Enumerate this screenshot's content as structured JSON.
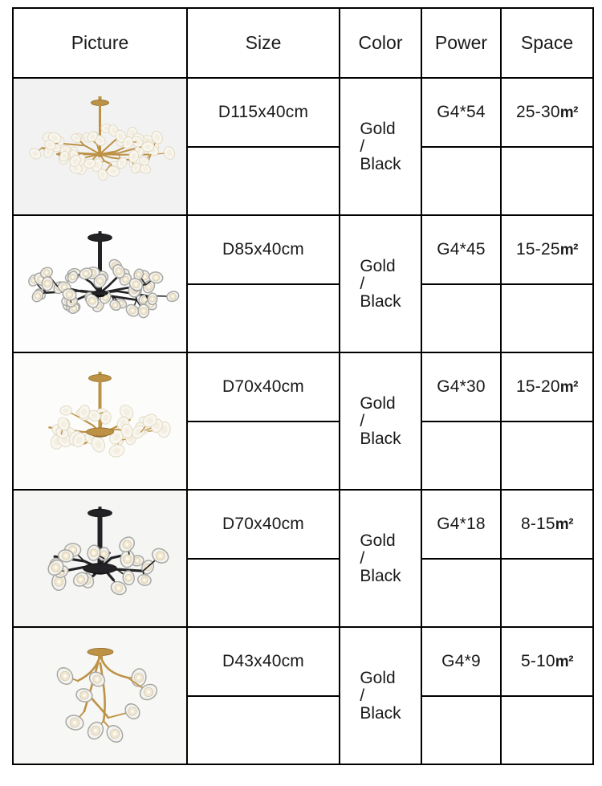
{
  "page": {
    "background": "#ffffff",
    "border_color": "#000000"
  },
  "table": {
    "columns": [
      "Picture",
      "Size",
      "Color",
      "Power",
      "Space"
    ]
  },
  "rows": [
    {
      "picture": {
        "name": "gold-firefly-chandelier-54-lights",
        "frame": "gold",
        "frame_color": "#bd9245",
        "lights": 54,
        "layout": "spread",
        "disc_style": "petal",
        "bg": "#f2f2f2"
      },
      "size": "D115x40cm",
      "color": "Gold\n/\nBlack",
      "power": "G4*54",
      "space_value": "25-30",
      "space_unit": "m²"
    },
    {
      "picture": {
        "name": "black-firefly-chandelier-45-lights",
        "frame": "black",
        "frame_color": "#232325",
        "lights": 45,
        "layout": "spread",
        "disc_style": "ring",
        "bg": "#fdfdfd"
      },
      "size": "D85x40cm",
      "color": "Gold\n/\nBlack",
      "power": "G4*45",
      "space_value": "15-25",
      "space_unit": "m²"
    },
    {
      "picture": {
        "name": "gold-firefly-chandelier-30-lights",
        "frame": "gold",
        "frame_color": "#bd9245",
        "lights": 30,
        "layout": "spread",
        "disc_style": "petal",
        "bg": "#fcfcfa"
      },
      "size": "D70x40cm",
      "color": "Gold\n/\nBlack",
      "power": "G4*30",
      "space_value": "15-20",
      "space_unit": "m²"
    },
    {
      "picture": {
        "name": "black-firefly-chandelier-18-lights",
        "frame": "black",
        "frame_color": "#232325",
        "lights": 18,
        "layout": "spread",
        "disc_style": "ring",
        "bg": "#f5f5f4"
      },
      "size": "D70x40cm",
      "color": "Gold\n/\nBlack",
      "power": "G4*18",
      "space_value": "8-15",
      "space_unit": "m²"
    },
    {
      "picture": {
        "name": "gold-firefly-chandelier-9-lights",
        "frame": "gold",
        "frame_color": "#bd9245",
        "lights": 9,
        "layout": "cascade",
        "disc_style": "ring",
        "bg": "#f7f7f5"
      },
      "size": "D43x40cm",
      "color": "Gold\n/\nBlack",
      "power": "G4*9",
      "space_value": "5-10",
      "space_unit": "m²"
    }
  ]
}
